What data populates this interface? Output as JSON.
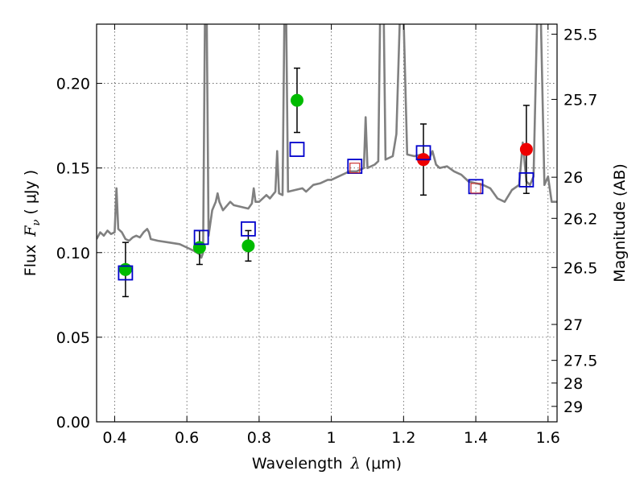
{
  "chart_data": {
    "type": "scatter",
    "title": "",
    "xlabel": "Wavelength",
    "xlabel_math": "λ",
    "xlabel_unit": "(μm)",
    "ylabel": "Flux",
    "ylabel_math": "F",
    "ylabel_sub": "ν",
    "ylabel_unit": "( μJy )",
    "y2label": "Magnitude (AB)",
    "xlim": [
      0.35,
      1.625
    ],
    "ylim": [
      0.0,
      0.235
    ],
    "grid": true,
    "x_ticks": [
      0.4,
      0.6,
      0.8,
      1.0,
      1.2,
      1.4,
      1.6
    ],
    "x_tick_labels": [
      "0.4",
      "0.6",
      "0.8",
      "1",
      "1.2",
      "1.4",
      "1.6"
    ],
    "y_ticks": [
      0.0,
      0.05,
      0.1,
      0.15,
      0.2
    ],
    "y_tick_labels": [
      "0.00",
      "0.05",
      "0.10",
      "0.15",
      "0.20"
    ],
    "mag_ticks": [
      25.5,
      25.7,
      26,
      26.2,
      26.5,
      27,
      27.5,
      28,
      29
    ],
    "mag_tick_labels": [
      "25.5",
      "25.7",
      "26",
      "26.2",
      "26.5",
      "27",
      "27.5",
      "28",
      "29"
    ],
    "colors": {
      "model": "#808080",
      "green": "#00bb00",
      "red": "#ee0000",
      "model_box": "#0000cc",
      "inner_box": "#cc3333",
      "errorbar": "#000000",
      "grid": "#555555"
    },
    "series": [
      {
        "kind": "line",
        "points": [
          [
            0.35,
            0.108
          ],
          [
            0.36,
            0.112
          ],
          [
            0.37,
            0.11
          ],
          [
            0.38,
            0.113
          ],
          [
            0.39,
            0.111
          ],
          [
            0.4,
            0.112
          ],
          [
            0.405,
            0.138
          ],
          [
            0.41,
            0.114
          ],
          [
            0.42,
            0.112
          ],
          [
            0.43,
            0.108
          ],
          [
            0.44,
            0.107
          ],
          [
            0.45,
            0.109
          ],
          [
            0.46,
            0.11
          ],
          [
            0.47,
            0.109
          ],
          [
            0.48,
            0.112
          ],
          [
            0.49,
            0.114
          ],
          [
            0.495,
            0.112
          ],
          [
            0.5,
            0.108
          ],
          [
            0.52,
            0.107
          ],
          [
            0.55,
            0.106
          ],
          [
            0.58,
            0.105
          ],
          [
            0.6,
            0.103
          ],
          [
            0.62,
            0.101
          ],
          [
            0.635,
            0.099
          ],
          [
            0.64,
            0.097
          ],
          [
            0.645,
            0.1
          ],
          [
            0.65,
            0.24
          ],
          [
            0.655,
            0.24
          ],
          [
            0.66,
            0.11
          ],
          [
            0.67,
            0.125
          ],
          [
            0.68,
            0.13
          ],
          [
            0.685,
            0.135
          ],
          [
            0.69,
            0.13
          ],
          [
            0.7,
            0.125
          ],
          [
            0.72,
            0.13
          ],
          [
            0.73,
            0.128
          ],
          [
            0.75,
            0.127
          ],
          [
            0.77,
            0.126
          ],
          [
            0.78,
            0.129
          ],
          [
            0.785,
            0.138
          ],
          [
            0.79,
            0.13
          ],
          [
            0.8,
            0.13
          ],
          [
            0.82,
            0.134
          ],
          [
            0.83,
            0.132
          ],
          [
            0.845,
            0.136
          ],
          [
            0.85,
            0.16
          ],
          [
            0.855,
            0.135
          ],
          [
            0.865,
            0.134
          ],
          [
            0.87,
            0.24
          ],
          [
            0.875,
            0.24
          ],
          [
            0.88,
            0.136
          ],
          [
            0.9,
            0.137
          ],
          [
            0.92,
            0.138
          ],
          [
            0.93,
            0.136
          ],
          [
            0.95,
            0.14
          ],
          [
            0.97,
            0.141
          ],
          [
            0.99,
            0.143
          ],
          [
            1.0,
            0.143
          ],
          [
            1.02,
            0.145
          ],
          [
            1.04,
            0.147
          ],
          [
            1.05,
            0.148
          ],
          [
            1.07,
            0.148
          ],
          [
            1.09,
            0.15
          ],
          [
            1.095,
            0.18
          ],
          [
            1.1,
            0.15
          ],
          [
            1.12,
            0.152
          ],
          [
            1.13,
            0.154
          ],
          [
            1.135,
            0.24
          ],
          [
            1.145,
            0.24
          ],
          [
            1.15,
            0.155
          ],
          [
            1.17,
            0.157
          ],
          [
            1.18,
            0.17
          ],
          [
            1.19,
            0.24
          ],
          [
            1.2,
            0.24
          ],
          [
            1.21,
            0.158
          ],
          [
            1.23,
            0.157
          ],
          [
            1.25,
            0.158
          ],
          [
            1.26,
            0.156
          ],
          [
            1.27,
            0.155
          ],
          [
            1.28,
            0.16
          ],
          [
            1.29,
            0.152
          ],
          [
            1.3,
            0.15
          ],
          [
            1.32,
            0.151
          ],
          [
            1.34,
            0.148
          ],
          [
            1.36,
            0.146
          ],
          [
            1.38,
            0.142
          ],
          [
            1.4,
            0.141
          ],
          [
            1.42,
            0.14
          ],
          [
            1.44,
            0.138
          ],
          [
            1.46,
            0.132
          ],
          [
            1.48,
            0.13
          ],
          [
            1.5,
            0.137
          ],
          [
            1.52,
            0.14
          ],
          [
            1.53,
            0.165
          ],
          [
            1.54,
            0.142
          ],
          [
            1.55,
            0.14
          ],
          [
            1.56,
            0.145
          ],
          [
            1.57,
            0.24
          ],
          [
            1.58,
            0.24
          ],
          [
            1.59,
            0.14
          ],
          [
            1.6,
            0.145
          ],
          [
            1.61,
            0.13
          ],
          [
            1.625,
            0.13
          ]
        ]
      },
      {
        "kind": "points",
        "color": "green",
        "points": [
          {
            "x": 0.43,
            "y": 0.09,
            "err": 0.016
          },
          {
            "x": 0.635,
            "y": 0.103,
            "err": 0.01
          },
          {
            "x": 0.77,
            "y": 0.104,
            "err": 0.009
          },
          {
            "x": 0.905,
            "y": 0.19,
            "err": 0.019
          }
        ]
      },
      {
        "kind": "points",
        "color": "red",
        "points": [
          {
            "x": 1.255,
            "y": 0.155,
            "err": 0.021
          },
          {
            "x": 1.54,
            "y": 0.161,
            "err": 0.026
          }
        ]
      },
      {
        "kind": "boxes",
        "color": "model_box",
        "points": [
          {
            "x": 0.43,
            "y": 0.088
          },
          {
            "x": 0.64,
            "y": 0.109
          },
          {
            "x": 0.77,
            "y": 0.114
          },
          {
            "x": 0.905,
            "y": 0.161
          },
          {
            "x": 1.065,
            "y": 0.151
          },
          {
            "x": 1.255,
            "y": 0.159
          },
          {
            "x": 1.4,
            "y": 0.139
          },
          {
            "x": 1.54,
            "y": 0.143
          }
        ]
      },
      {
        "kind": "boxes",
        "color": "inner_box",
        "points": [
          {
            "x": 1.065,
            "y": 0.15
          },
          {
            "x": 1.4,
            "y": 0.138
          }
        ]
      }
    ]
  }
}
